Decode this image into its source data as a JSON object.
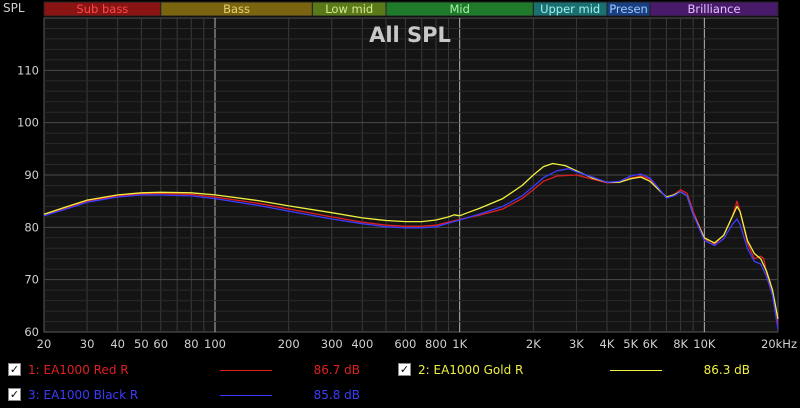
{
  "colors": {
    "background": "#000000",
    "plot_background": "#141414",
    "grid_minor": "#3a3a3a",
    "grid_major": "#b4b4b4",
    "text": "#d0d0d0"
  },
  "bands": [
    {
      "label": "Sub bass",
      "from": 20,
      "to": 60,
      "color": "#8a1414",
      "text_color": "#ff4848"
    },
    {
      "label": "Bass",
      "from": 60,
      "to": 250,
      "color": "#7a6410",
      "text_color": "#e8d070"
    },
    {
      "label": "Low mid",
      "from": 250,
      "to": 500,
      "color": "#5a7a1a",
      "text_color": "#d8e890"
    },
    {
      "label": "Mid",
      "from": 500,
      "to": 2000,
      "color": "#1f7a2c",
      "text_color": "#a8f0a8"
    },
    {
      "label": "Upper mid",
      "from": 2000,
      "to": 4000,
      "color": "#1a7070",
      "text_color": "#a0f0f0"
    },
    {
      "label": "Presen",
      "from": 4000,
      "to": 6000,
      "color": "#1a3f80",
      "text_color": "#a0c8ff"
    },
    {
      "label": "Brilliance",
      "from": 6000,
      "to": 20000,
      "color": "#4a1a6a",
      "text_color": "#e0c0ff"
    }
  ],
  "chart_data": {
    "type": "line",
    "title": "All SPL",
    "ylabel": "SPL",
    "xlabel": "",
    "x_scale": "log",
    "xlim": [
      20,
      20000
    ],
    "ylim": [
      60,
      120
    ],
    "x_ticks": [
      {
        "value": 20,
        "label": "20"
      },
      {
        "value": 30,
        "label": "30"
      },
      {
        "value": 40,
        "label": "40"
      },
      {
        "value": 50,
        "label": "50"
      },
      {
        "value": 60,
        "label": "60"
      },
      {
        "value": 80,
        "label": "80"
      },
      {
        "value": 100,
        "label": "100"
      },
      {
        "value": 200,
        "label": "200"
      },
      {
        "value": 300,
        "label": "300"
      },
      {
        "value": 400,
        "label": "400"
      },
      {
        "value": 600,
        "label": "600"
      },
      {
        "value": 800,
        "label": "800"
      },
      {
        "value": 1000,
        "label": "1K"
      },
      {
        "value": 2000,
        "label": "2K"
      },
      {
        "value": 3000,
        "label": "3K"
      },
      {
        "value": 4000,
        "label": "4K"
      },
      {
        "value": 5000,
        "label": "5K"
      },
      {
        "value": 6000,
        "label": "6K"
      },
      {
        "value": 8000,
        "label": "8K"
      },
      {
        "value": 10000,
        "label": "10K"
      },
      {
        "value": 20000,
        "label": "20kHz"
      }
    ],
    "y_ticks": [
      {
        "value": 60,
        "label": "60"
      },
      {
        "value": 70,
        "label": "70"
      },
      {
        "value": 80,
        "label": "80"
      },
      {
        "value": 90,
        "label": "90"
      },
      {
        "value": 100,
        "label": "100"
      },
      {
        "value": 110,
        "label": "110"
      }
    ],
    "grid": true,
    "series": [
      {
        "name": "EA1000 Red R",
        "color": "#e02020",
        "points": [
          [
            20,
            82.3
          ],
          [
            25,
            83.8
          ],
          [
            30,
            85
          ],
          [
            40,
            86
          ],
          [
            50,
            86.4
          ],
          [
            60,
            86.5
          ],
          [
            80,
            86.3
          ],
          [
            100,
            85.8
          ],
          [
            150,
            84.6
          ],
          [
            200,
            83.5
          ],
          [
            300,
            82
          ],
          [
            400,
            81
          ],
          [
            500,
            80.4
          ],
          [
            600,
            80.2
          ],
          [
            700,
            80.2
          ],
          [
            800,
            80.4
          ],
          [
            900,
            81
          ],
          [
            1000,
            81.5
          ],
          [
            1200,
            82.3
          ],
          [
            1500,
            83.5
          ],
          [
            1800,
            85.5
          ],
          [
            2000,
            87.2
          ],
          [
            2200,
            88.8
          ],
          [
            2500,
            89.8
          ],
          [
            3000,
            90
          ],
          [
            3500,
            89.2
          ],
          [
            4000,
            88.5
          ],
          [
            4500,
            88.6
          ],
          [
            5000,
            89.4
          ],
          [
            5500,
            89.8
          ],
          [
            6000,
            89.2
          ],
          [
            6500,
            87.2
          ],
          [
            7000,
            85.8
          ],
          [
            7500,
            86.2
          ],
          [
            8000,
            87.2
          ],
          [
            8500,
            86.5
          ],
          [
            9000,
            83
          ],
          [
            10000,
            78
          ],
          [
            10500,
            77
          ],
          [
            11000,
            76.8
          ],
          [
            12000,
            78.5
          ],
          [
            13000,
            82
          ],
          [
            13600,
            85
          ],
          [
            14000,
            83
          ],
          [
            15000,
            77
          ],
          [
            16000,
            74
          ],
          [
            17000,
            74.5
          ],
          [
            17500,
            74
          ],
          [
            18000,
            71
          ],
          [
            19000,
            67.5
          ],
          [
            20000,
            61.5
          ]
        ]
      },
      {
        "name": "EA1000 Gold R",
        "color": "#f0f040",
        "points": [
          [
            20,
            82.5
          ],
          [
            25,
            84
          ],
          [
            30,
            85.2
          ],
          [
            40,
            86.2
          ],
          [
            50,
            86.6
          ],
          [
            60,
            86.7
          ],
          [
            80,
            86.6
          ],
          [
            100,
            86.2
          ],
          [
            150,
            85.1
          ],
          [
            200,
            84.1
          ],
          [
            300,
            82.8
          ],
          [
            400,
            81.8
          ],
          [
            500,
            81.3
          ],
          [
            600,
            81.1
          ],
          [
            700,
            81.1
          ],
          [
            800,
            81.4
          ],
          [
            900,
            82
          ],
          [
            950,
            82.4
          ],
          [
            1000,
            82.2
          ],
          [
            1050,
            82.6
          ],
          [
            1200,
            83.6
          ],
          [
            1500,
            85.5
          ],
          [
            1800,
            88
          ],
          [
            2000,
            90
          ],
          [
            2200,
            91.6
          ],
          [
            2400,
            92.2
          ],
          [
            2700,
            91.8
          ],
          [
            3000,
            90.8
          ],
          [
            3500,
            89.4
          ],
          [
            4000,
            88.6
          ],
          [
            4500,
            88.6
          ],
          [
            5000,
            89.3
          ],
          [
            5500,
            89.6
          ],
          [
            6000,
            88.8
          ],
          [
            6500,
            87.2
          ],
          [
            7000,
            85.8
          ],
          [
            7500,
            86.2
          ],
          [
            8000,
            86.8
          ],
          [
            8500,
            86
          ],
          [
            9000,
            82.5
          ],
          [
            10000,
            78
          ],
          [
            11000,
            77
          ],
          [
            12000,
            78.5
          ],
          [
            13000,
            82
          ],
          [
            13600,
            84
          ],
          [
            14000,
            83
          ],
          [
            15000,
            77.5
          ],
          [
            16000,
            75
          ],
          [
            17000,
            74
          ],
          [
            18000,
            71.5
          ],
          [
            19000,
            68
          ],
          [
            20000,
            62.5
          ]
        ]
      },
      {
        "name": "EA1000 Black R",
        "color": "#3c3cff",
        "points": [
          [
            20,
            82.2
          ],
          [
            25,
            83.6
          ],
          [
            30,
            84.8
          ],
          [
            40,
            85.8
          ],
          [
            50,
            86.2
          ],
          [
            60,
            86.2
          ],
          [
            80,
            86
          ],
          [
            100,
            85.5
          ],
          [
            150,
            84.2
          ],
          [
            200,
            83.1
          ],
          [
            300,
            81.6
          ],
          [
            400,
            80.7
          ],
          [
            500,
            80.1
          ],
          [
            600,
            79.9
          ],
          [
            700,
            79.9
          ],
          [
            800,
            80.1
          ],
          [
            900,
            80.8
          ],
          [
            1000,
            81.4
          ],
          [
            1200,
            82.5
          ],
          [
            1500,
            84
          ],
          [
            1800,
            86
          ],
          [
            2000,
            87.8
          ],
          [
            2200,
            89.5
          ],
          [
            2500,
            90.8
          ],
          [
            2800,
            91.2
          ],
          [
            3000,
            90.6
          ],
          [
            3500,
            89.6
          ],
          [
            4000,
            88.6
          ],
          [
            4500,
            88.8
          ],
          [
            5000,
            89.8
          ],
          [
            5500,
            90.2
          ],
          [
            6000,
            89.4
          ],
          [
            6500,
            87.5
          ],
          [
            7000,
            85.6
          ],
          [
            7500,
            86
          ],
          [
            8000,
            86.8
          ],
          [
            8500,
            86
          ],
          [
            9000,
            82.5
          ],
          [
            10000,
            77.5
          ],
          [
            11000,
            76.5
          ],
          [
            12000,
            77.8
          ],
          [
            13000,
            80.5
          ],
          [
            13600,
            81.6
          ],
          [
            14000,
            80.5
          ],
          [
            15000,
            76
          ],
          [
            16000,
            73.5
          ],
          [
            17000,
            73
          ],
          [
            18000,
            70.5
          ],
          [
            19000,
            67
          ],
          [
            20000,
            60.5
          ]
        ]
      }
    ]
  },
  "legend": [
    {
      "label": "1: EA1000 Red R",
      "value": "86.7 dB",
      "color": "#e02020",
      "checked": true
    },
    {
      "label": "2: EA1000 Gold R",
      "value": "86.3 dB",
      "color": "#f0f040",
      "checked": true
    },
    {
      "label": "3: EA1000 Black R",
      "value": "85.8 dB",
      "color": "#3c3cff",
      "checked": true
    }
  ]
}
